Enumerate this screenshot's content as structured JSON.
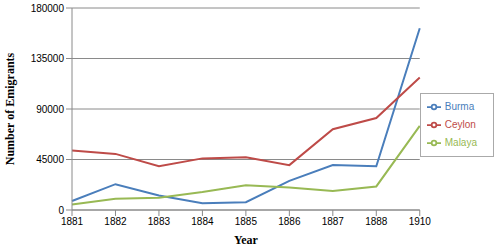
{
  "chart_data": {
    "type": "line",
    "x_label": "Year",
    "y_label": "Number of Emigrants",
    "categories": [
      "1881",
      "1882",
      "1883",
      "1884",
      "1885",
      "1886",
      "1887",
      "1888",
      "1910"
    ],
    "series": [
      {
        "name": "Burma",
        "color": "#4a7ebb",
        "values": [
          8000,
          23000,
          13000,
          6000,
          7000,
          26000,
          40000,
          39000,
          162000
        ]
      },
      {
        "name": "Ceylon",
        "color": "#be4b48",
        "values": [
          53000,
          50000,
          39000,
          46000,
          47000,
          40000,
          72000,
          82000,
          118000
        ]
      },
      {
        "name": "Malaya",
        "color": "#98b954",
        "values": [
          5000,
          10000,
          11000,
          16000,
          22000,
          20000,
          17000,
          21000,
          75000
        ]
      }
    ],
    "ylim": [
      0,
      180000
    ],
    "yticks": [
      0,
      45000,
      90000,
      135000,
      180000
    ],
    "grid": true,
    "legend": "right"
  }
}
